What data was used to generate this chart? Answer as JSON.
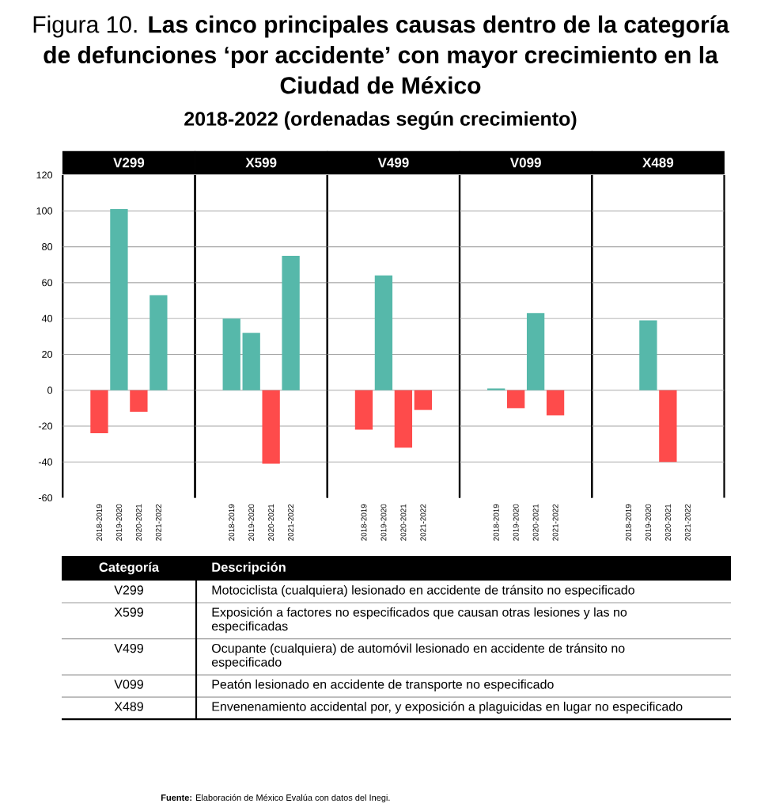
{
  "chart_data": [
    {
      "type": "other",
      "title": "Figura 10. **Las cinco principales causas dentro de la categoría de defunciones ‘por accidente’ con mayor crecimiento en la Ciudad de México**",
      "subtitle": "2018-2022 (ordenadas según crecimiento)",
      "annotations": [
        "**Fuente:** Elaboración de México Evalúa con datos del Inegi."
      ]
    },
    {
      "type": "bar",
      "title": "V299",
      "categories": [
        "2018-2019",
        "2019-2020",
        "2020-2021",
        "2021-2022"
      ],
      "values": [
        -24,
        101,
        -12,
        53
      ],
      "colors": [
        "#fe4b4b",
        "#56b8aa",
        "#fe4b4b",
        "#56b8aa"
      ],
      "ylim": [
        -60,
        120
      ],
      "yticks": [
        -60,
        -40,
        -20,
        0,
        20,
        40,
        60,
        80,
        100,
        120
      ],
      "grid": "y"
    },
    {
      "type": "bar",
      "title": "X599",
      "categories": [
        "2018-2019",
        "2019-2020",
        "2020-2021",
        "2021-2022"
      ],
      "values": [
        40,
        32,
        -41,
        75
      ],
      "colors": [
        "#56b8aa",
        "#56b8aa",
        "#fe4b4b",
        "#56b8aa"
      ],
      "ylim": [
        -60,
        120
      ],
      "yticks": [
        -60,
        -40,
        -20,
        0,
        20,
        40,
        60,
        80,
        100,
        120
      ],
      "grid": "y",
      "tick_labels": "x"
    },
    {
      "type": "bar",
      "title": "V499",
      "categories": [
        "2018-2019",
        "2019-2020",
        "2020-2021",
        "2021-2022"
      ],
      "values": [
        -22,
        64,
        -32,
        -11
      ],
      "colors": [
        "#fe4b4b",
        "#56b8aa",
        "#fe4b4b",
        "#fe4b4b"
      ],
      "ylim": [
        -60,
        120
      ],
      "yticks": [
        -60,
        -40,
        -20,
        0,
        20,
        40,
        60,
        80,
        100,
        120
      ],
      "grid": "y",
      "tick_labels": "x"
    },
    {
      "type": "bar",
      "title": "V099",
      "categories": [
        "2018-2019",
        "2019-2020",
        "2020-2021",
        "2021-2022"
      ],
      "values": [
        1,
        -10,
        43,
        -14
      ],
      "colors": [
        "#56b8aa",
        "#fe4b4b",
        "#56b8aa",
        "#fe4b4b"
      ],
      "ylim": [
        -60,
        120
      ],
      "yticks": [
        -60,
        -40,
        -20,
        0,
        20,
        40,
        60,
        80,
        100,
        120
      ],
      "grid": "y",
      "tick_labels": "x"
    },
    {
      "type": "bar",
      "title": "X489",
      "categories": [
        "2018-2019",
        "2019-2020",
        "2020-2021",
        "2021-2022"
      ],
      "values": [
        0,
        39,
        -40,
        0
      ],
      "colors": [
        "#56b8aa",
        "#56b8aa",
        "#fe4b4b",
        "#fe4b4b"
      ],
      "ylim": [
        -60,
        120
      ],
      "yticks": [
        -60,
        -40,
        -20,
        0,
        20,
        40,
        60,
        80,
        100,
        120
      ],
      "grid": "y",
      "tick_labels": "x"
    },
    {
      "type": "other",
      "annotations": [
        "Categoría",
        "Descripción",
        "V299",
        "Motociclista (cualquiera) lesionado en accidente de tránsito no especificado",
        "X599",
        "Exposición a factores no especificados que causan otras lesiones y las no especificadas",
        "V499",
        "Ocupante (cualquiera) de automóvil lesionado en accidente de tránsito no especificado",
        "V099",
        "Peatón lesionado en accidente de transporte no especificado",
        "X489",
        "Envenenamiento accidental por, y exposición a plaguicidas en lugar no especificado"
      ]
    }
  ]
}
